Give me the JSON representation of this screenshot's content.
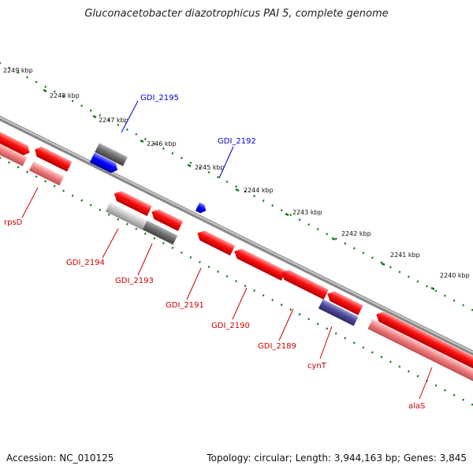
{
  "title": "Gluconacetobacter diazotrophicus PAI 5, complete genome",
  "footer": {
    "accession": "Accession: NC_010125",
    "topology": "Topology: circular; Length: 3,944,163 bp; Genes: 3,845"
  },
  "colors": {
    "backbone": "#8a8a8a",
    "cds": "#ff0000",
    "cds_light": "#f08080",
    "pseudo": "#707070",
    "pseudo_light": "#c0c0c0",
    "blue": "#0000ff",
    "purple": "#4a4a9a",
    "tick": "#1a7a1a",
    "label_red": "#cc0000",
    "label_blue": "#0000cc"
  },
  "ticks": [
    "2249 kbp",
    "2248 kbp",
    "2247 kbp",
    "2246 kbp",
    "2245 kbp",
    "2244 kbp",
    "2243 kbp",
    "2242 kbp",
    "2241 kbp",
    "2240 kbp"
  ],
  "gene_labels": [
    "rpsD",
    "GDI_2194",
    "GDI_2193",
    "GDI_2191",
    "GDI_2190",
    "GDI_2189",
    "cynT",
    "alaS",
    "GDI_2195",
    "GDI_2192"
  ]
}
